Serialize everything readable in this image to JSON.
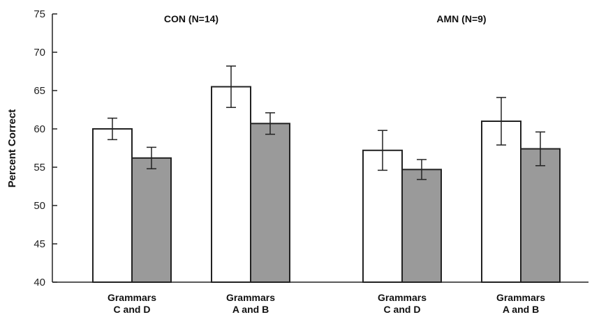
{
  "chart_data": {
    "type": "bar",
    "ylabel": "Percent Correct",
    "ylim": [
      40,
      75
    ],
    "yticks": [
      "40",
      "45",
      "50",
      "55",
      "60",
      "65",
      "70",
      "75"
    ],
    "grid": false,
    "colors": {
      "series1": "#ffffff",
      "series2": "#9a9a9a",
      "stroke": "#222222"
    },
    "groups": [
      {
        "title": "CON (N=14)",
        "categories": [
          {
            "label": [
              "Grammars",
              "C and D"
            ],
            "values": [
              60.0,
              56.2
            ],
            "errors": [
              1.4,
              1.4
            ]
          },
          {
            "label": [
              "Grammars",
              "A and B"
            ],
            "values": [
              65.5,
              60.7
            ],
            "errors": [
              2.7,
              1.4
            ]
          }
        ]
      },
      {
        "title": "AMN (N=9)",
        "categories": [
          {
            "label": [
              "Grammars",
              "C and D"
            ],
            "values": [
              57.2,
              54.7
            ],
            "errors": [
              2.6,
              1.3
            ]
          },
          {
            "label": [
              "Grammars",
              "A and B"
            ],
            "values": [
              61.0,
              57.4
            ],
            "errors": [
              3.1,
              2.2
            ]
          }
        ]
      }
    ]
  }
}
